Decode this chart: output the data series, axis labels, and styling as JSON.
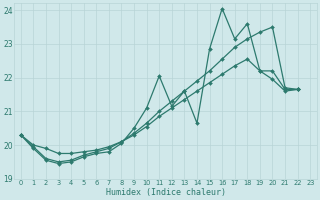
{
  "xlabel": "Humidex (Indice chaleur)",
  "xlim": [
    -0.5,
    23.5
  ],
  "ylim": [
    19,
    24.2
  ],
  "yticks": [
    19,
    20,
    21,
    22,
    23,
    24
  ],
  "xticks": [
    0,
    1,
    2,
    3,
    4,
    5,
    6,
    7,
    8,
    9,
    10,
    11,
    12,
    13,
    14,
    15,
    16,
    17,
    18,
    19,
    20,
    21,
    22,
    23
  ],
  "bg_color": "#d0e8ea",
  "grid_color": "#b8d4d6",
  "line_color": "#2d7a6e",
  "series": [
    [
      [
        0,
        20.3
      ],
      [
        1,
        19.9
      ],
      [
        2,
        19.55
      ],
      [
        3,
        19.45
      ],
      [
        4,
        19.5
      ],
      [
        5,
        19.65
      ],
      [
        6,
        19.75
      ],
      [
        7,
        19.8
      ],
      [
        8,
        20.05
      ],
      [
        9,
        20.5
      ],
      [
        10,
        21.1
      ],
      [
        11,
        22.05
      ],
      [
        12,
        21.15
      ],
      [
        13,
        21.6
      ],
      [
        14,
        20.65
      ],
      [
        15,
        22.85
      ],
      [
        16,
        24.05
      ],
      [
        17,
        23.15
      ],
      [
        18,
        23.6
      ],
      [
        19,
        22.2
      ],
      [
        20,
        21.95
      ],
      [
        21,
        21.6
      ],
      [
        22,
        21.65
      ]
    ],
    [
      [
        0,
        20.3
      ],
      [
        1,
        19.95
      ],
      [
        2,
        19.6
      ],
      [
        3,
        19.5
      ],
      [
        4,
        19.55
      ],
      [
        5,
        19.7
      ],
      [
        6,
        19.8
      ],
      [
        7,
        19.9
      ],
      [
        8,
        20.1
      ],
      [
        9,
        20.35
      ],
      [
        10,
        20.65
      ],
      [
        11,
        21.0
      ],
      [
        12,
        21.3
      ],
      [
        13,
        21.6
      ],
      [
        14,
        21.9
      ],
      [
        15,
        22.2
      ],
      [
        16,
        22.55
      ],
      [
        17,
        22.9
      ],
      [
        18,
        23.15
      ],
      [
        19,
        23.35
      ],
      [
        20,
        23.5
      ],
      [
        21,
        21.7
      ],
      [
        22,
        21.65
      ]
    ],
    [
      [
        0,
        20.3
      ],
      [
        1,
        20.0
      ],
      [
        2,
        19.9
      ],
      [
        3,
        19.75
      ],
      [
        4,
        19.75
      ],
      [
        5,
        19.8
      ],
      [
        6,
        19.85
      ],
      [
        7,
        19.95
      ],
      [
        8,
        20.1
      ],
      [
        9,
        20.3
      ],
      [
        10,
        20.55
      ],
      [
        11,
        20.85
      ],
      [
        12,
        21.1
      ],
      [
        13,
        21.35
      ],
      [
        14,
        21.6
      ],
      [
        15,
        21.85
      ],
      [
        16,
        22.1
      ],
      [
        17,
        22.35
      ],
      [
        18,
        22.55
      ],
      [
        19,
        22.2
      ],
      [
        20,
        22.2
      ],
      [
        21,
        21.65
      ],
      [
        22,
        21.65
      ]
    ]
  ]
}
